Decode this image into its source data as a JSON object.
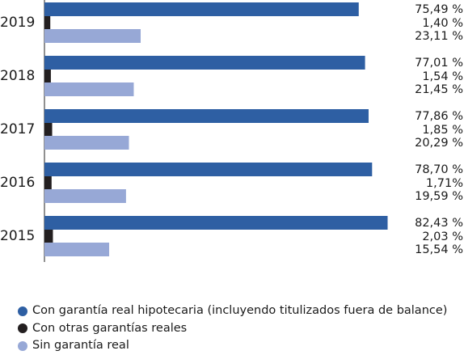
{
  "chart_data": {
    "type": "bar",
    "orientation": "horizontal",
    "categories": [
      "2019",
      "2018",
      "2017",
      "2016",
      "2015"
    ],
    "series": [
      {
        "name": "Con garantía real hipotecaria (incluyendo titulizados fuera de balance)",
        "color": "#2e5fa3",
        "values": [
          75.49,
          77.01,
          77.86,
          78.7,
          82.43
        ],
        "labels": [
          "75,49 %",
          "77,01 %",
          "77,86 %",
          "78,70 %",
          "82,43 %"
        ]
      },
      {
        "name": "Con otras garantías reales",
        "color": "#231f20",
        "values": [
          1.4,
          1.54,
          1.85,
          1.71,
          2.03
        ],
        "labels": [
          "1,40 %",
          "1,54 %",
          "1,85 %",
          "1,71%",
          "2,03 %"
        ]
      },
      {
        "name": "Sin garantía real",
        "color": "#97a8d6",
        "values": [
          23.11,
          21.45,
          20.29,
          19.59,
          15.54
        ],
        "labels": [
          "23,11 %",
          "21,45 %",
          "20,29 %",
          "19,59 %",
          "15,54 %"
        ]
      }
    ],
    "xlim": [
      0,
      100
    ],
    "grid": false,
    "legend_position": "bottom-left"
  }
}
